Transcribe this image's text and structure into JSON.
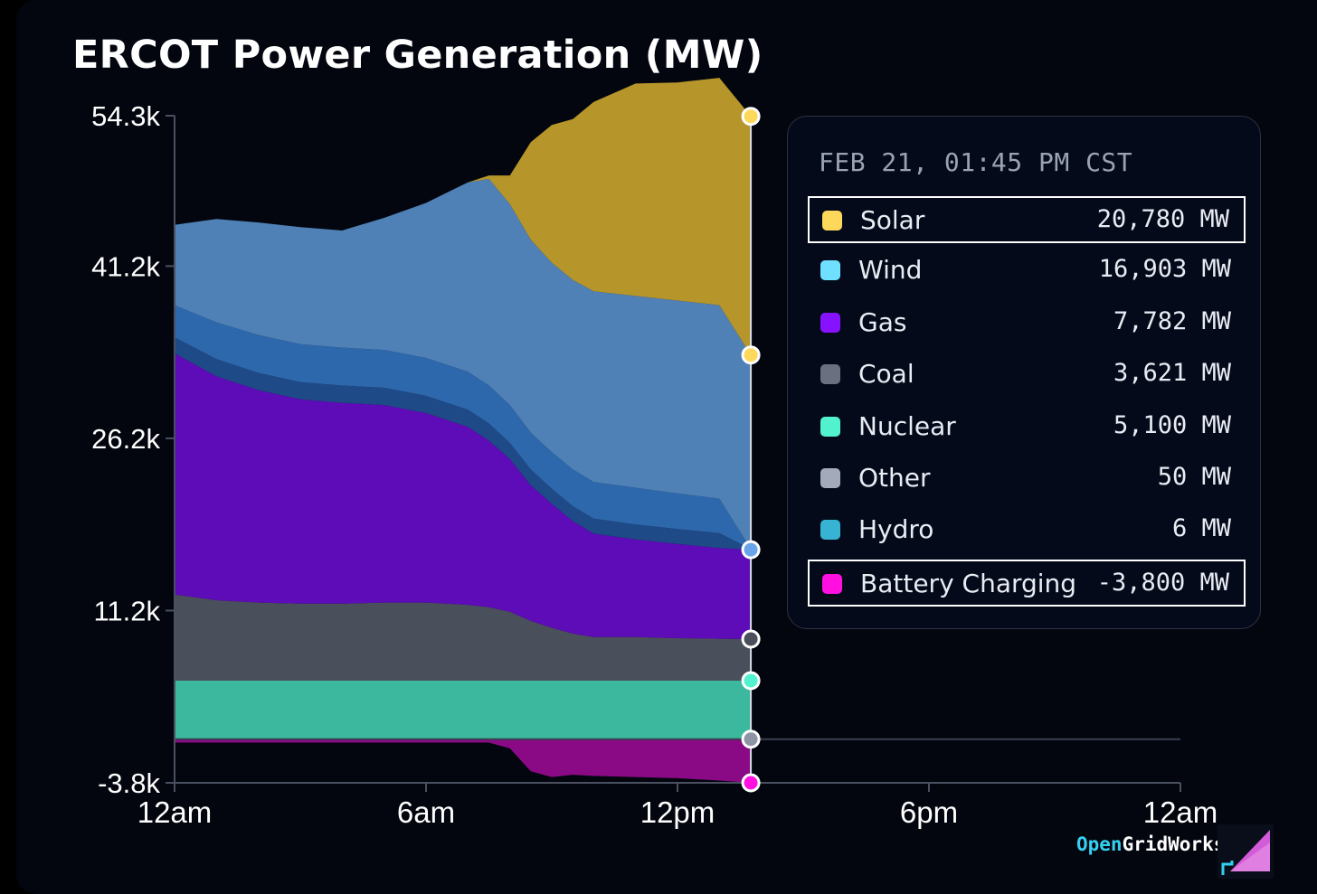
{
  "title": "ERCOT Power Generation (MW)",
  "chart_data": {
    "type": "area",
    "title": "ERCOT Power Generation (MW)",
    "stacked": true,
    "y_ticks": [
      {
        "label": "54.3k",
        "value": 54300
      },
      {
        "label": "41.2k",
        "value": 41200
      },
      {
        "label": "26.2k",
        "value": 26200
      },
      {
        "label": "11.2k",
        "value": 11200
      },
      {
        "label": "-3.8k",
        "value": -3800
      }
    ],
    "ylim": [
      -3800,
      54300
    ],
    "x_ticks": [
      {
        "label": "12am",
        "value": 0
      },
      {
        "label": "6am",
        "value": 6
      },
      {
        "label": "12pm",
        "value": 12
      },
      {
        "label": "6pm",
        "value": 18
      },
      {
        "label": "12am",
        "value": 24
      }
    ],
    "xlim": [
      0,
      24
    ],
    "x": [
      0,
      1,
      2,
      3,
      4,
      5,
      6,
      7,
      7.5,
      8,
      8.5,
      9,
      9.5,
      10,
      11,
      12,
      13,
      13.75
    ],
    "series": [
      {
        "name": "Nuclear",
        "color": "#3bb89e",
        "values": [
          5100,
          5100,
          5100,
          5100,
          5100,
          5100,
          5100,
          5100,
          5100,
          5100,
          5100,
          5100,
          5100,
          5100,
          5100,
          5100,
          5100,
          5100
        ]
      },
      {
        "name": "Coal",
        "color": "#4a4f5c",
        "values": [
          7500,
          7000,
          6800,
          6700,
          6700,
          6800,
          6800,
          6600,
          6400,
          6000,
          5200,
          4600,
          4100,
          3800,
          3800,
          3700,
          3650,
          3621
        ]
      },
      {
        "name": "Gas",
        "color": "#5e0cb8",
        "values": [
          21000,
          19500,
          18500,
          17800,
          17500,
          17200,
          16500,
          15500,
          14500,
          13300,
          11800,
          10800,
          9800,
          9000,
          8500,
          8200,
          7900,
          7782
        ]
      },
      {
        "name": "Other",
        "color": "#1f4a88",
        "values": [
          1400,
          1500,
          1500,
          1500,
          1500,
          1500,
          1500,
          1500,
          1500,
          1400,
          1400,
          1300,
          1300,
          1300,
          1300,
          1300,
          1300,
          50
        ]
      },
      {
        "name": "Hydro",
        "color": "#2e68ac",
        "values": [
          2800,
          3200,
          3300,
          3300,
          3300,
          3300,
          3300,
          3300,
          3300,
          3300,
          3200,
          3200,
          3200,
          3200,
          3200,
          3100,
          3000,
          6
        ]
      },
      {
        "name": "Wind",
        "color": "#4f81b6",
        "values": [
          7000,
          9000,
          9800,
          10200,
          10200,
          11500,
          13500,
          16500,
          18000,
          17500,
          16800,
          16500,
          16500,
          16600,
          16700,
          16800,
          16850,
          16903
        ]
      },
      {
        "name": "Solar",
        "color": "#b6952a",
        "values": [
          0,
          0,
          0,
          0,
          0,
          0,
          0,
          0,
          300,
          2500,
          8500,
          12000,
          14000,
          16500,
          18500,
          19000,
          19800,
          20780
        ]
      }
    ],
    "battery": {
      "name": "Battery Charging",
      "color": "#8a0a86",
      "values": [
        -300,
        -300,
        -300,
        -300,
        -300,
        -300,
        -300,
        -300,
        -300,
        -800,
        -2800,
        -3300,
        -3100,
        -3200,
        -3300,
        -3400,
        -3600,
        -3800
      ]
    },
    "cursor_time": "FEB 21, 01:45 PM CST"
  },
  "tooltip": {
    "header": "FEB 21, 01:45 PM CST",
    "rows": [
      {
        "label": "Solar",
        "value": "20,780 MW",
        "color": "#fdd85b",
        "highlight": true
      },
      {
        "label": "Wind",
        "value": "16,903 MW",
        "color": "#6fe0ff",
        "highlight": false
      },
      {
        "label": "Gas",
        "value": "7,782 MW",
        "color": "#8612ff",
        "highlight": false
      },
      {
        "label": "Coal",
        "value": "3,621 MW",
        "color": "#6b7080",
        "highlight": false
      },
      {
        "label": "Nuclear",
        "value": "5,100 MW",
        "color": "#52f2cf",
        "highlight": false
      },
      {
        "label": "Other",
        "value": "50 MW",
        "color": "#a3aab9",
        "highlight": false
      },
      {
        "label": "Hydro",
        "value": "6 MW",
        "color": "#37b4d4",
        "highlight": false
      },
      {
        "label": "Battery Charging",
        "value": "-3,800 MW",
        "color": "#ff10e0",
        "highlight": true
      }
    ]
  },
  "brand": {
    "part1": "Open",
    "part2": "GridWorks"
  }
}
